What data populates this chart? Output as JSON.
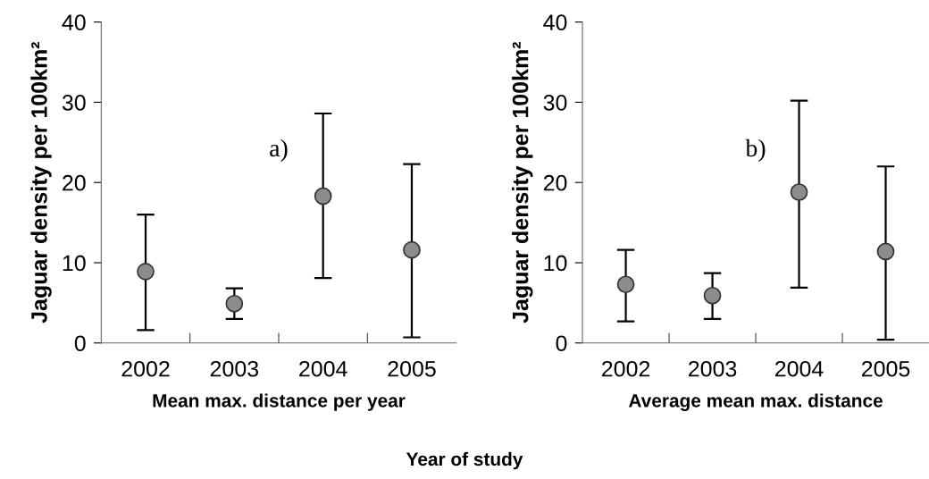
{
  "chart_data": [
    {
      "type": "scatter",
      "xlabel": "Mean max. distance per year",
      "ylabel": "Jaguar density per 100km²",
      "categories": [
        "2002",
        "2003",
        "2004",
        "2005"
      ],
      "values": [
        8.9,
        4.9,
        18.3,
        11.6
      ],
      "errors": [
        [
          1.6,
          16.0
        ],
        [
          3.0,
          6.8
        ],
        [
          8.1,
          28.6
        ],
        [
          0.7,
          22.3
        ]
      ],
      "color": "#8c8c8c",
      "marker": "circle",
      "ylim": [
        0,
        40
      ],
      "yticks": [
        0,
        10,
        20,
        30,
        40
      ],
      "grid": false,
      "legend": false,
      "annotations": [
        "a)"
      ]
    },
    {
      "type": "scatter",
      "xlabel": "Average mean max. distance",
      "ylabel": "Jaguar density per 100km²",
      "categories": [
        "2002",
        "2003",
        "2004",
        "2005"
      ],
      "values": [
        7.3,
        5.9,
        18.8,
        11.4
      ],
      "errors": [
        [
          2.7,
          11.6
        ],
        [
          3.0,
          8.7
        ],
        [
          6.9,
          30.2
        ],
        [
          0.4,
          22.0
        ]
      ],
      "color": "#8c8c8c",
      "marker": "circle",
      "ylim": [
        0,
        40
      ],
      "yticks": [
        0,
        10,
        20,
        30,
        40
      ],
      "grid": false,
      "legend": false,
      "annotations": [
        "b)",
        "Year of study"
      ]
    }
  ]
}
